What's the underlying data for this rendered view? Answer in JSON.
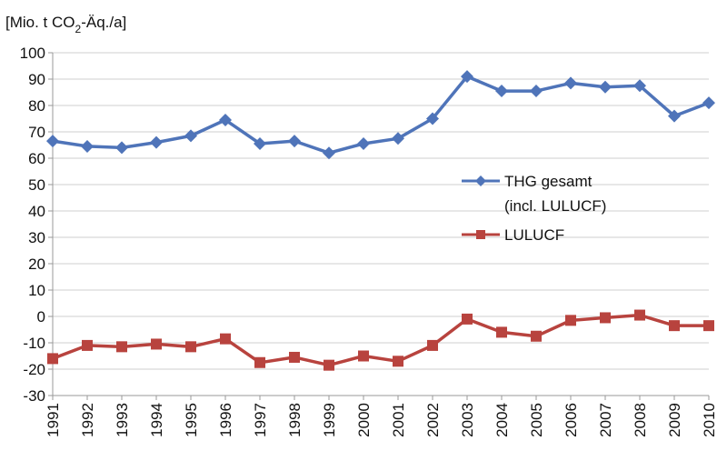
{
  "chart_data": {
    "type": "line",
    "title": "",
    "ylabel_prefix": "[Mio. t CO",
    "ylabel_sub": "2",
    "ylabel_suffix": "-Äq./a]",
    "xlabel": "",
    "ylim": [
      -30,
      100
    ],
    "ytick_step": 10,
    "grid": true,
    "legend_position": "center-right",
    "categories": [
      "1991",
      "1992",
      "1993",
      "1994",
      "1995",
      "1996",
      "1997",
      "1998",
      "1999",
      "2000",
      "2001",
      "2002",
      "2003",
      "2004",
      "2005",
      "2006",
      "2007",
      "2008",
      "2009",
      "2010"
    ],
    "series": [
      {
        "name": "THG gesamt",
        "name_line2": "(incl. LULUCF)",
        "color": "#4f74b9",
        "marker": "diamond",
        "values": [
          66.5,
          64.5,
          64,
          66,
          68.5,
          74.5,
          65.5,
          66.5,
          62,
          65.5,
          67.5,
          75,
          91,
          85.5,
          85.5,
          88.5,
          87,
          87.5,
          76,
          81
        ]
      },
      {
        "name": "LULUCF",
        "color": "#b8433e",
        "marker": "square",
        "values": [
          -16,
          -11,
          -11.5,
          -10.5,
          -11.5,
          -8.5,
          -17.5,
          -15.5,
          -18.5,
          -15,
          -17,
          -11,
          -1,
          -6,
          -7.5,
          -1.5,
          -0.5,
          0.5,
          -3.5,
          -3.5
        ]
      }
    ]
  }
}
